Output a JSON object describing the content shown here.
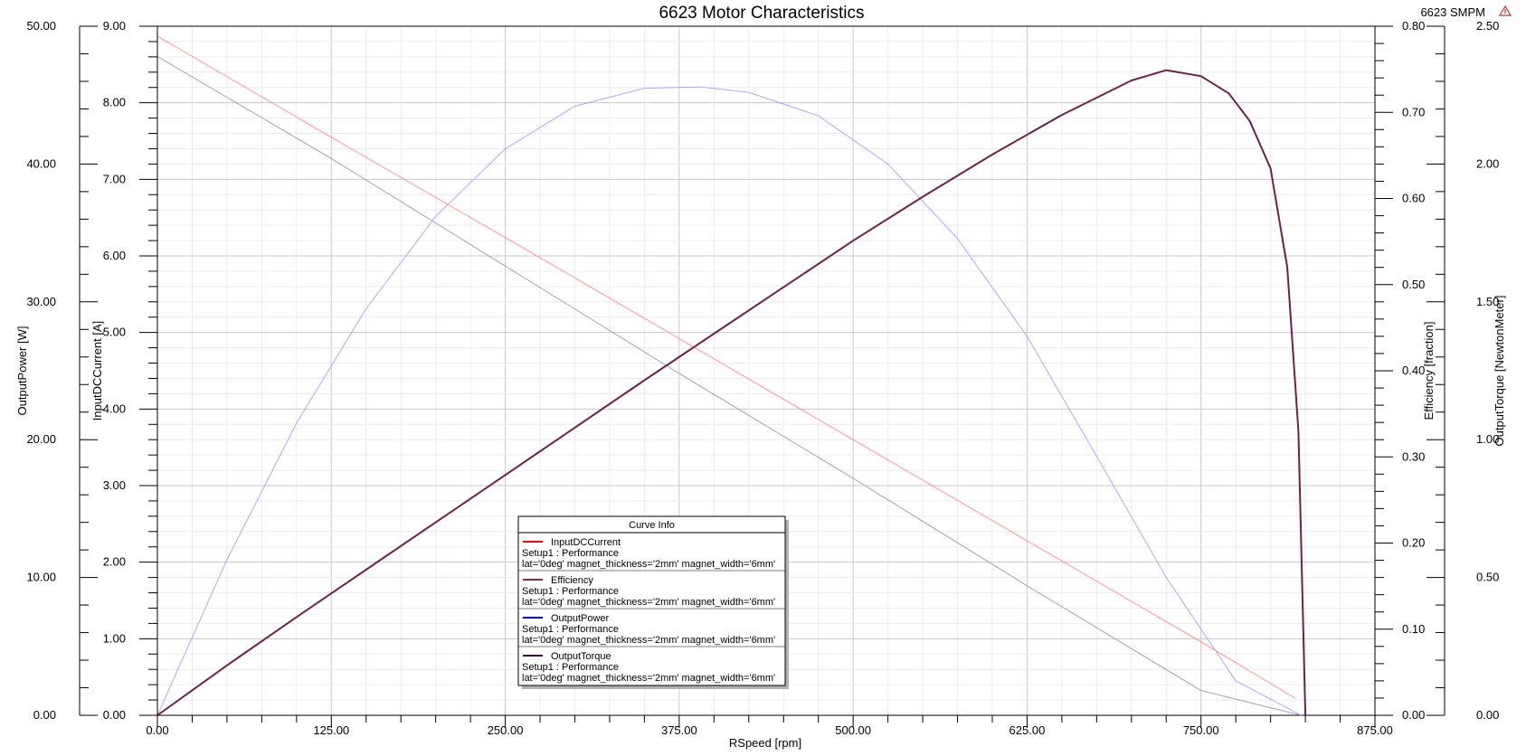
{
  "chart_data": {
    "type": "line",
    "title": "6623 Motor Characteristics",
    "corner_label": "6623 SMPM",
    "xlabel": "RSpeed [rpm]",
    "xlim": [
      0,
      875
    ],
    "x_ticks": [
      "0.00",
      "125.00",
      "250.00",
      "375.00",
      "500.00",
      "625.00",
      "750.00",
      "875.00"
    ],
    "grid": true,
    "axes": {
      "power": {
        "label": "OutputPower [W]",
        "lim": [
          0,
          50
        ],
        "ticks": [
          "0.00",
          "10.00",
          "20.00",
          "30.00",
          "40.00",
          "50.00"
        ]
      },
      "current": {
        "label": "InputDCCurrent [A]",
        "lim": [
          0,
          9
        ],
        "ticks": [
          "0.00",
          "1.00",
          "2.00",
          "3.00",
          "4.00",
          "5.00",
          "6.00",
          "7.00",
          "8.00",
          "9.00"
        ]
      },
      "efficiency": {
        "label": "Efficiency [fraction]",
        "lim": [
          0,
          0.8
        ],
        "ticks": [
          "0.00",
          "0.10",
          "0.20",
          "0.30",
          "0.40",
          "0.50",
          "0.60",
          "0.70",
          "0.80"
        ]
      },
      "torque": {
        "label": "OutputTorque [NewtonMeter]",
        "lim": [
          0,
          2.5
        ],
        "ticks": [
          "0.00",
          "0.50",
          "1.00",
          "1.50",
          "2.00",
          "2.50"
        ]
      }
    },
    "legend": {
      "title": "Curve Info",
      "placement": "bottom-center",
      "entries": [
        {
          "name": "InputDCCurrent",
          "line1": "Setup1 : Performance",
          "line2": "lat='0deg' magnet_thickness='2mm' magnet_width='6mm'",
          "color": "#ff0000"
        },
        {
          "name": "Efficiency",
          "line1": "Setup1 : Performance",
          "line2": "lat='0deg' magnet_thickness='2mm' magnet_width='6mm'",
          "color": "#7a2a4a"
        },
        {
          "name": "OutputPower",
          "line1": "Setup1 : Performance",
          "line2": "lat='0deg' magnet_thickness='2mm' magnet_width='6mm'",
          "color": "#0000cc"
        },
        {
          "name": "OutputTorque",
          "line1": "Setup1 : Performance",
          "line2": "lat='0deg' magnet_thickness='2mm' magnet_width='6mm'",
          "color": "#3a0a3a"
        }
      ]
    },
    "series": [
      {
        "name": "InputDCCurrent",
        "axis": "current",
        "color": "#ff8c8c",
        "width": 0.9,
        "x": [
          0,
          125,
          250,
          375,
          500,
          625,
          750,
          818
        ],
        "y": [
          8.87,
          7.55,
          6.24,
          4.92,
          3.6,
          2.28,
          0.96,
          0.22
        ]
      },
      {
        "name": "OutputTorque",
        "axis": "torque",
        "color": "#9a9aaa",
        "width": 0.9,
        "x": [
          0,
          125,
          250,
          375,
          500,
          625,
          750,
          822
        ],
        "y": [
          2.39,
          2.02,
          1.63,
          1.24,
          0.86,
          0.47,
          0.09,
          0.0
        ]
      },
      {
        "name": "OutputPower",
        "axis": "power",
        "color": "#a0a0ff",
        "width": 0.9,
        "x": [
          0,
          50,
          100,
          150,
          200,
          250,
          300,
          350,
          390,
          425,
          475,
          525,
          575,
          625,
          675,
          725,
          775,
          822
        ],
        "y": [
          0,
          11.3,
          21.2,
          29.5,
          36.2,
          41.1,
          44.2,
          45.5,
          45.6,
          45.2,
          43.5,
          40.0,
          34.6,
          27.5,
          18.8,
          10.0,
          2.5,
          0
        ]
      },
      {
        "name": "Efficiency",
        "axis": "efficiency",
        "color": "#6b2348",
        "width": 2,
        "x": [
          0,
          50,
          100,
          150,
          200,
          250,
          300,
          350,
          400,
          450,
          500,
          550,
          600,
          650,
          700,
          725,
          750,
          770,
          785,
          800,
          812,
          820,
          825
        ],
        "y": [
          0,
          0.058,
          0.114,
          0.169,
          0.224,
          0.279,
          0.334,
          0.389,
          0.443,
          0.497,
          0.551,
          0.602,
          0.651,
          0.697,
          0.737,
          0.749,
          0.742,
          0.722,
          0.69,
          0.635,
          0.52,
          0.33,
          0.0
        ]
      }
    ]
  }
}
